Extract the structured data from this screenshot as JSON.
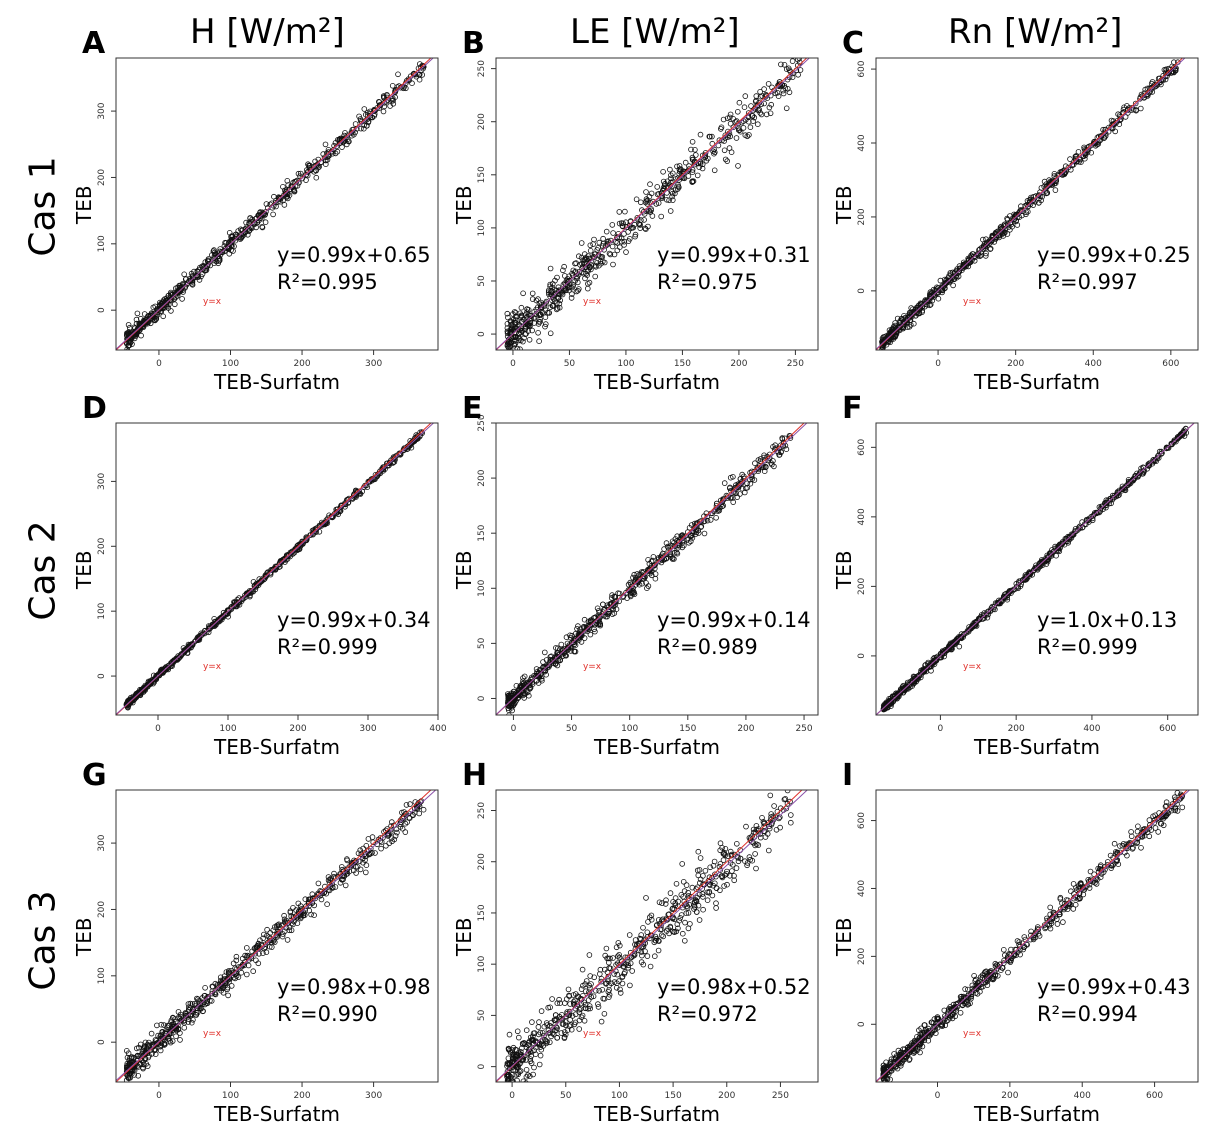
{
  "columns": [
    "H [W/m²]",
    "LE [W/m²]",
    "Rn [W/m²]"
  ],
  "rows": [
    "Cas 1",
    "Cas 2",
    "Cas 3"
  ],
  "chart_data": [
    {
      "type": "scatter",
      "panel_label": "A",
      "variable": "H",
      "case": "Cas 1",
      "xlabel": "TEB-Surfatm",
      "ylabel": "TEB",
      "line_label": "y=x",
      "xlim": [
        -60,
        390
      ],
      "ylim": [
        -60,
        380
      ],
      "xticks": [
        0,
        100,
        200,
        300
      ],
      "yticks": [
        0,
        100,
        200,
        300
      ],
      "equation": "y=0.99x+0.65",
      "r2": "R²=0.995",
      "fit": {
        "slope": 0.99,
        "intercept": 0.65
      },
      "scatter": {
        "xmin": -45,
        "xmax": 370,
        "spread": 8
      }
    },
    {
      "type": "scatter",
      "panel_label": "B",
      "variable": "LE",
      "case": "Cas 1",
      "xlabel": "TEB-Surfatm",
      "ylabel": "TEB",
      "line_label": "y=x",
      "xlim": [
        -15,
        270
      ],
      "ylim": [
        -15,
        260
      ],
      "xticks": [
        0,
        50,
        100,
        150,
        200,
        250
      ],
      "yticks": [
        0,
        50,
        100,
        150,
        200,
        250
      ],
      "equation": "y=0.99x+0.31",
      "r2": "R²=0.975",
      "fit": {
        "slope": 0.99,
        "intercept": 0.31
      },
      "scatter": {
        "xmin": -5,
        "xmax": 255,
        "spread": 13
      }
    },
    {
      "type": "scatter",
      "panel_label": "C",
      "variable": "Rn",
      "case": "Cas 1",
      "xlabel": "TEB-Surfatm",
      "ylabel": "TEB",
      "line_label": "y=x",
      "xlim": [
        -160,
        670
      ],
      "ylim": [
        -160,
        630
      ],
      "xticks": [
        0,
        200,
        400,
        600
      ],
      "yticks": [
        0,
        200,
        400,
        600
      ],
      "equation": "y=0.99x+0.25",
      "r2": "R²=0.997",
      "fit": {
        "slope": 0.99,
        "intercept": 0.25
      },
      "scatter": {
        "xmin": -145,
        "xmax": 620,
        "spread": 12
      }
    },
    {
      "type": "scatter",
      "panel_label": "D",
      "variable": "H",
      "case": "Cas 2",
      "xlabel": "TEB-Surfatm",
      "ylabel": "TEB",
      "line_label": "y=x",
      "xlim": [
        -60,
        400
      ],
      "ylim": [
        -60,
        390
      ],
      "xticks": [
        0,
        100,
        200,
        300,
        400
      ],
      "yticks": [
        0,
        100,
        200,
        300
      ],
      "equation": "y=0.99x+0.34",
      "r2": "R²=0.999",
      "fit": {
        "slope": 0.99,
        "intercept": 0.34
      },
      "scatter": {
        "xmin": -45,
        "xmax": 380,
        "spread": 3
      }
    },
    {
      "type": "scatter",
      "panel_label": "E",
      "variable": "LE",
      "case": "Cas 2",
      "xlabel": "TEB-Surfatm",
      "ylabel": "TEB",
      "line_label": "y=x",
      "xlim": [
        -15,
        262
      ],
      "ylim": [
        -15,
        250
      ],
      "xticks": [
        0,
        50,
        100,
        150,
        200,
        250
      ],
      "yticks": [
        0,
        50,
        100,
        150,
        200,
        250
      ],
      "equation": "y=0.99x+0.14",
      "r2": "R²=0.989",
      "fit": {
        "slope": 0.99,
        "intercept": 0.14
      },
      "scatter": {
        "xmin": -5,
        "xmax": 240,
        "spread": 6
      }
    },
    {
      "type": "scatter",
      "panel_label": "F",
      "variable": "Rn",
      "case": "Cas 2",
      "xlabel": "TEB-Surfatm",
      "ylabel": "TEB",
      "line_label": "y=x",
      "xlim": [
        -170,
        680
      ],
      "ylim": [
        -170,
        670
      ],
      "xticks": [
        0,
        200,
        400,
        600
      ],
      "yticks": [
        0,
        200,
        400,
        600
      ],
      "equation": "y=1.0x+0.13",
      "r2": "R²=0.999",
      "fit": {
        "slope": 1.0,
        "intercept": 0.13
      },
      "scatter": {
        "xmin": -150,
        "xmax": 650,
        "spread": 7
      }
    },
    {
      "type": "scatter",
      "panel_label": "G",
      "variable": "H",
      "case": "Cas 3",
      "xlabel": "TEB-Surfatm",
      "ylabel": "TEB",
      "line_label": "y=x",
      "xlim": [
        -60,
        390
      ],
      "ylim": [
        -60,
        380
      ],
      "xticks": [
        0,
        100,
        200,
        300
      ],
      "yticks": [
        0,
        100,
        200,
        300
      ],
      "equation": "y=0.98x+0.98",
      "r2": "R²=0.990",
      "fit": {
        "slope": 0.98,
        "intercept": 0.98
      },
      "scatter": {
        "xmin": -45,
        "xmax": 370,
        "spread": 12
      }
    },
    {
      "type": "scatter",
      "panel_label": "H",
      "variable": "LE",
      "case": "Cas 3",
      "xlabel": "TEB-Surfatm",
      "ylabel": "TEB",
      "line_label": "y=x",
      "xlim": [
        -15,
        285
      ],
      "ylim": [
        -15,
        270
      ],
      "xticks": [
        0,
        50,
        100,
        150,
        200,
        250
      ],
      "yticks": [
        0,
        50,
        100,
        150,
        200,
        250
      ],
      "equation": "y=0.98x+0.52",
      "r2": "R²=0.972",
      "fit": {
        "slope": 0.98,
        "intercept": 0.52
      },
      "scatter": {
        "xmin": -5,
        "xmax": 260,
        "spread": 16
      }
    },
    {
      "type": "scatter",
      "panel_label": "I",
      "variable": "Rn",
      "case": "Cas 3",
      "xlabel": "TEB-Surfatm",
      "ylabel": "TEB",
      "line_label": "y=x",
      "xlim": [
        -170,
        720
      ],
      "ylim": [
        -170,
        690
      ],
      "xticks": [
        0,
        200,
        400,
        600
      ],
      "yticks": [
        0,
        200,
        400,
        600
      ],
      "equation": "y=0.99x+0.43",
      "r2": "R²=0.994",
      "fit": {
        "slope": 0.99,
        "intercept": 0.43
      },
      "scatter": {
        "xmin": -150,
        "xmax": 680,
        "spread": 18
      }
    }
  ]
}
